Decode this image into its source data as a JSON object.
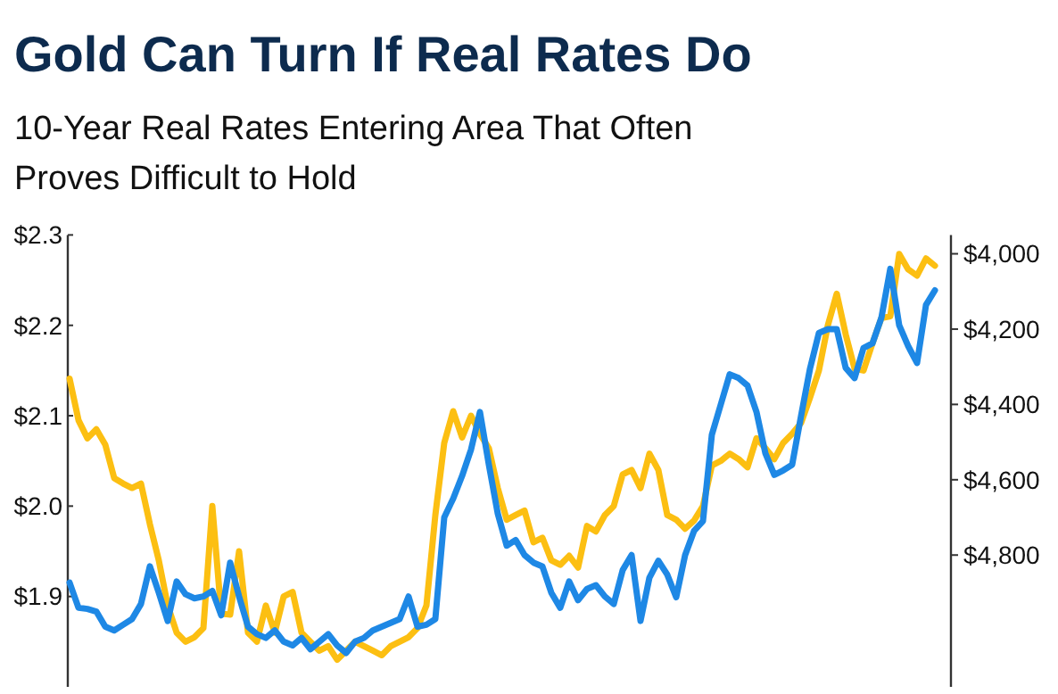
{
  "chart_data": {
    "type": "line",
    "title": "Gold Can Turn If Real Rates Do",
    "subtitle": "10-Year Real Rates Entering Area That Often Proves Difficult to Hold",
    "categories": [
      null,
      null,
      null,
      null,
      null,
      null,
      null,
      null,
      null,
      null,
      null,
      null,
      null,
      null,
      null,
      null,
      null,
      null,
      null,
      null,
      null,
      null,
      null,
      null,
      null,
      null,
      null,
      null,
      null,
      null,
      null,
      null,
      null,
      null,
      null,
      null,
      null,
      null,
      null,
      null,
      null,
      null,
      null,
      null,
      null,
      null,
      null,
      null,
      null,
      null,
      null,
      null,
      null,
      null,
      null,
      null,
      null,
      null,
      null,
      null,
      null,
      null,
      null,
      null,
      null,
      null,
      null,
      null,
      null,
      null,
      null,
      null,
      null,
      null,
      null,
      null,
      null,
      null,
      null,
      null,
      null,
      null,
      null,
      null,
      null,
      null,
      null,
      null,
      null,
      null,
      null,
      null,
      null,
      null,
      null,
      null,
      null,
      null
    ],
    "series": [
      {
        "color": "#fcbf12",
        "values": [
          2.141,
          2.095,
          2.075,
          2.085,
          2.068,
          2.031,
          2.025,
          2.02,
          2.025,
          1.98,
          1.94,
          1.89,
          1.86,
          1.85,
          1.855,
          1.865,
          2.0,
          1.881,
          1.88,
          1.95,
          1.86,
          1.85,
          1.89,
          1.86,
          1.9,
          1.905,
          1.86,
          1.85,
          1.84,
          1.845,
          1.83,
          1.84,
          1.85,
          1.845,
          1.84,
          1.835,
          1.845,
          1.85,
          1.855,
          1.865,
          1.89,
          1.99,
          2.07,
          2.105,
          2.076,
          2.1,
          2.08,
          2.064,
          2.02,
          1.985,
          1.99,
          1.995,
          1.96,
          1.965,
          1.94,
          1.935,
          1.945,
          1.932,
          1.978,
          1.972,
          1.99,
          2.0,
          2.035,
          2.04,
          2.02,
          2.058,
          2.04,
          1.99,
          1.985,
          1.975,
          1.984,
          2.0,
          2.045,
          2.05,
          2.058,
          2.052,
          2.043,
          2.075,
          2.064,
          2.052,
          2.07,
          2.08,
          2.092,
          2.12,
          2.15,
          2.2,
          2.235,
          2.19,
          2.152,
          2.15,
          2.18,
          2.208,
          2.21,
          2.279,
          2.262,
          2.255,
          2.274,
          2.266
        ]
      },
      {
        "color": "#1e88e5",
        "axis": "y2",
        "values": [
          4873,
          4940,
          4943,
          4950,
          4990,
          5000,
          4985,
          4970,
          4930,
          4830,
          4900,
          4975,
          4870,
          4904,
          4915,
          4910,
          4895,
          4960,
          4820,
          4910,
          4990,
          5010,
          5020,
          5000,
          5030,
          5040,
          5020,
          5050,
          5030,
          5010,
          5040,
          5060,
          5030,
          5020,
          5000,
          4990,
          4980,
          4970,
          4910,
          4990,
          4985,
          4970,
          4700,
          4650,
          4590,
          4520,
          4420,
          4560,
          4690,
          4775,
          4760,
          4800,
          4820,
          4830,
          4900,
          4940,
          4870,
          4920,
          4890,
          4880,
          4910,
          4930,
          4840,
          4800,
          4975,
          4860,
          4815,
          4852,
          4912,
          4800,
          4736,
          4710,
          4480,
          4400,
          4320,
          4330,
          4350,
          4420,
          4530,
          4587,
          4575,
          4560,
          4430,
          4305,
          4210,
          4200,
          4200,
          4303,
          4330,
          4250,
          4238,
          4170,
          4040,
          4190,
          4245,
          4290,
          4136,
          4097
        ]
      }
    ],
    "ylim": [
      1.8,
      2.3
    ],
    "yticks": [
      {
        "value": 2.3,
        "label": "$2.3"
      },
      {
        "value": 2.2,
        "label": "$2.2"
      },
      {
        "value": 2.1,
        "label": "$2.1"
      },
      {
        "value": 2.0,
        "label": "$2.0"
      },
      {
        "value": 1.9,
        "label": "$1.9"
      }
    ],
    "y2lim": [
      5150,
      3950
    ],
    "y2ticks": [
      {
        "value": 4000,
        "label": "$4,000"
      },
      {
        "value": 4200,
        "label": "$4,200"
      },
      {
        "value": 4400,
        "label": "$4,400"
      },
      {
        "value": 4600,
        "label": "$4,600"
      },
      {
        "value": 4800,
        "label": "$4,800"
      }
    ]
  }
}
